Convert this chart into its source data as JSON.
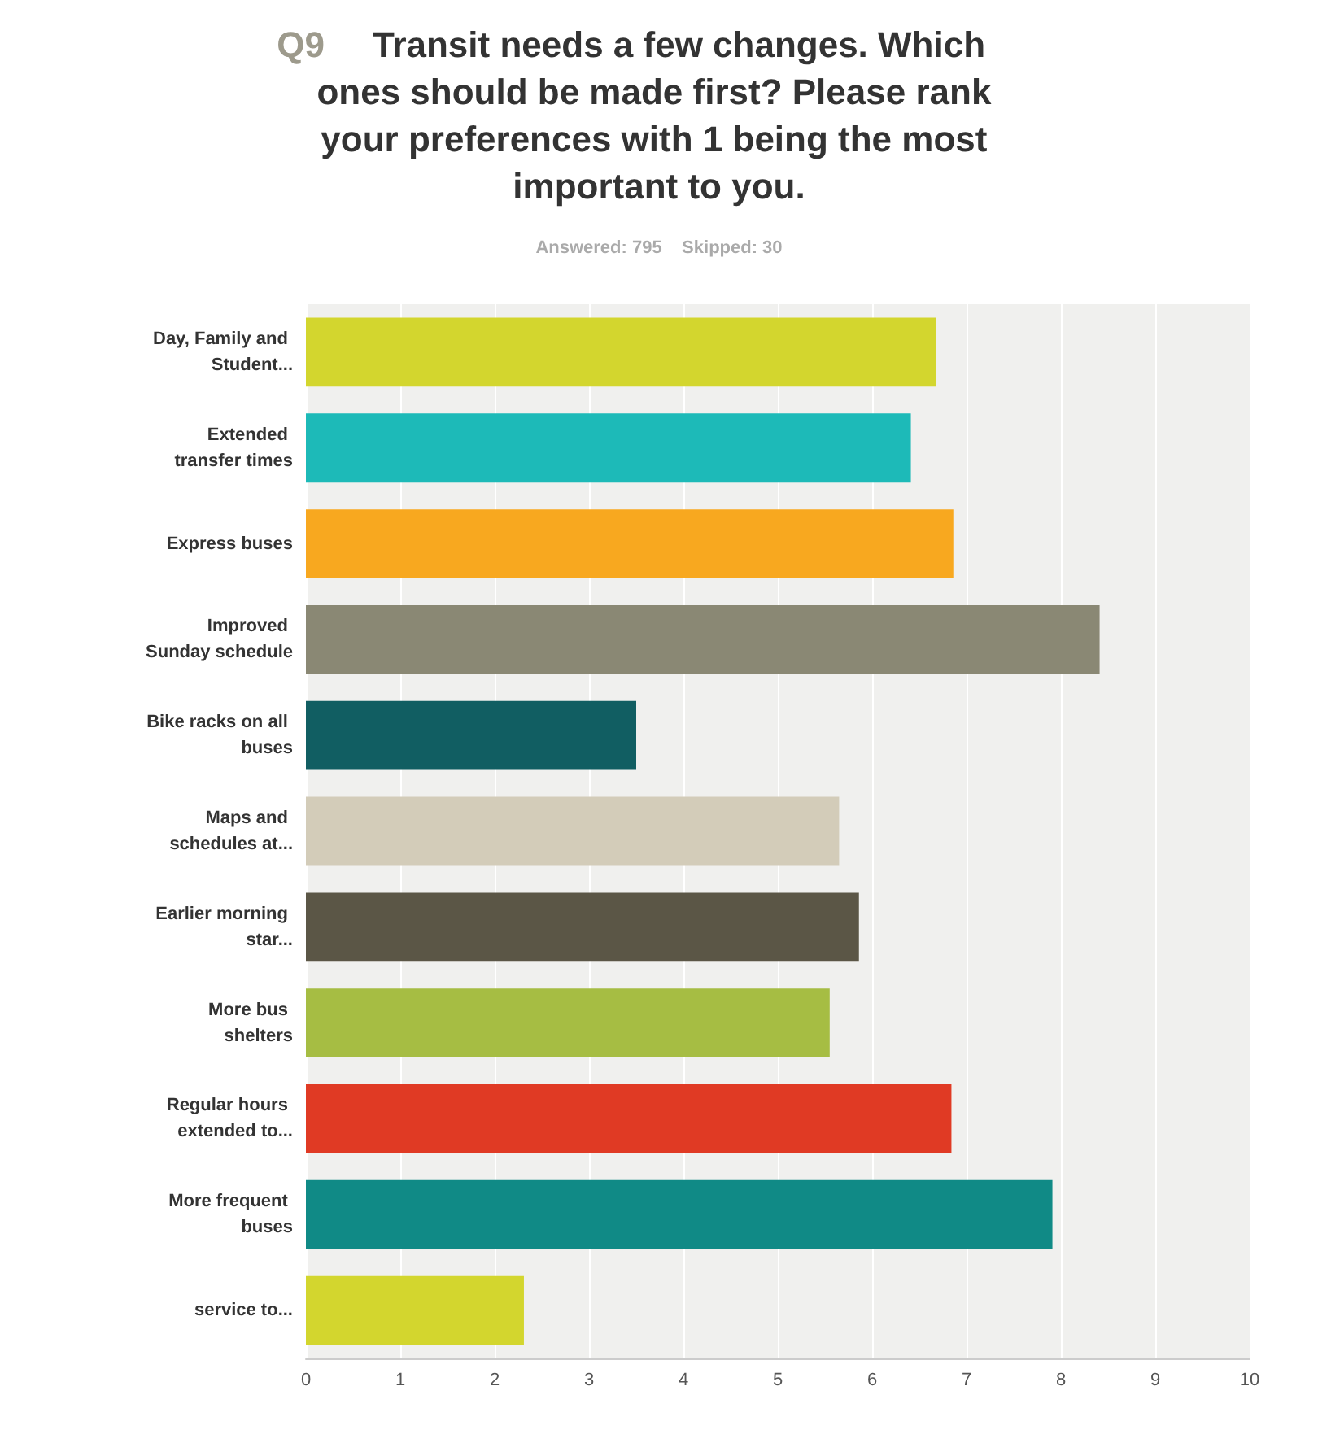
{
  "chart_data": {
    "type": "bar",
    "orientation": "horizontal",
    "title": "Q9 Transit needs a few changes. Which ones should be made first? Please rank your preferences with 1 being the most important to you.",
    "subtitle": "Answered: 795    Skipped: 30",
    "categories": [
      "Day, Family and Student...",
      "Extended transfer times",
      "Express buses",
      "Improved Sunday schedule",
      "Bike racks on all buses",
      "Maps and schedules at...",
      "Earlier morning star...",
      "More bus shelters",
      "Regular hours extended to...",
      "More frequent buses",
      "service to..."
    ],
    "values": [
      6.68,
      6.41,
      6.86,
      8.41,
      3.5,
      5.65,
      5.86,
      5.55,
      6.84,
      7.91,
      2.31
    ],
    "colors": [
      "#d3d62e",
      "#1dbab8",
      "#f8a81f",
      "#8a8874",
      "#115e62",
      "#d3ccb9",
      "#5b5646",
      "#a6bd43",
      "#e03a24",
      "#108a86",
      "#d3d62e"
    ],
    "xlim": [
      0,
      10
    ],
    "xticks": [
      0,
      1,
      2,
      3,
      4,
      5,
      6,
      7,
      8,
      9,
      10
    ],
    "grid": "x"
  }
}
